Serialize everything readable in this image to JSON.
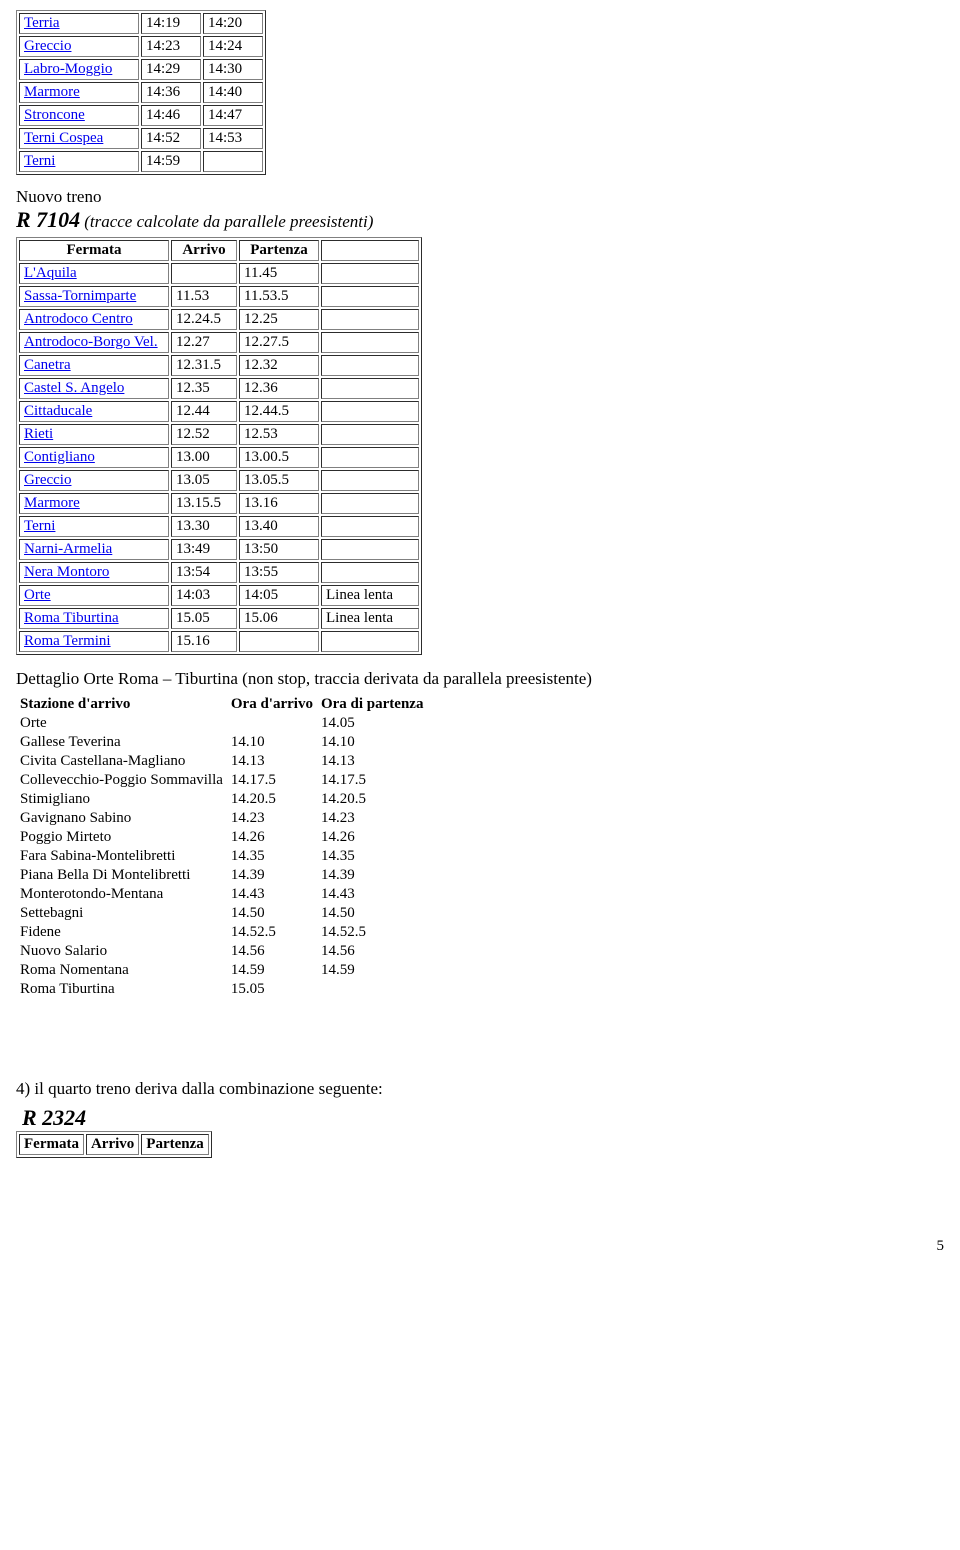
{
  "table1": {
    "col_widths": [
      "110px",
      "50px",
      "50px"
    ],
    "rows": [
      {
        "station": "Terria",
        "arr": "14:19",
        "dep": "14:20",
        "link": true
      },
      {
        "station": "Greccio",
        "arr": "14:23",
        "dep": "14:24",
        "link": true
      },
      {
        "station": "Labro-Moggio",
        "arr": "14:29",
        "dep": "14:30",
        "link": true
      },
      {
        "station": "Marmore",
        "arr": "14:36",
        "dep": "14:40",
        "link": true
      },
      {
        "station": "Stroncone",
        "arr": "14:46",
        "dep": "14:47",
        "link": true
      },
      {
        "station": "Terni Cospea",
        "arr": "14:52",
        "dep": "14:53",
        "link": true
      },
      {
        "station": "Terni",
        "arr": "14:59",
        "dep": "",
        "link": true
      }
    ]
  },
  "train2": {
    "prefix": "Nuovo treno",
    "id": "R 7104",
    "note": "(tracce calcolate da parallele preesistenti)"
  },
  "table2": {
    "headers": [
      "Fermata",
      "Arrivo",
      "Partenza",
      ""
    ],
    "col_widths": [
      "140px",
      "56px",
      "70px",
      "88px"
    ],
    "rows": [
      {
        "station": "L'Aquila",
        "arr": "",
        "dep": "11.45",
        "extra": "",
        "link": true
      },
      {
        "station": "Sassa-Tornimparte",
        "arr": "11.53",
        "dep": "11.53.5",
        "extra": "",
        "link": true
      },
      {
        "station": "Antrodoco Centro",
        "arr": "12.24.5",
        "dep": "12.25",
        "extra": "",
        "link": true
      },
      {
        "station": "Antrodoco-Borgo Vel.",
        "arr": "12.27",
        "dep": "12.27.5",
        "extra": "",
        "link": true
      },
      {
        "station": "Canetra",
        "arr": "12.31.5",
        "dep": "12.32",
        "extra": "",
        "link": true
      },
      {
        "station": "Castel S. Angelo",
        "arr": "12.35",
        "dep": "12.36",
        "extra": "",
        "link": true
      },
      {
        "station": "Cittaducale",
        "arr": "12.44",
        "dep": "12.44.5",
        "extra": "",
        "link": true
      },
      {
        "station": "Rieti",
        "arr": "12.52",
        "dep": "12.53",
        "extra": "",
        "link": true
      },
      {
        "station": "Contigliano",
        "arr": "13.00",
        "dep": "13.00.5",
        "extra": "",
        "link": true
      },
      {
        "station": "Greccio",
        "arr": "13.05",
        "dep": "13.05.5",
        "extra": "",
        "link": true
      },
      {
        "station": "Marmore",
        "arr": "13.15.5",
        "dep": "13.16",
        "extra": "",
        "link": true
      },
      {
        "station": "Terni",
        "arr": "13.30",
        "dep": "13.40",
        "extra": "",
        "link": true
      },
      {
        "station": "Narni-Armelia",
        "arr": "13:49",
        "dep": "13:50",
        "extra": "",
        "link": true
      },
      {
        "station": "Nera Montoro",
        "arr": "13:54",
        "dep": "13:55",
        "extra": "",
        "link": true
      },
      {
        "station": "Orte",
        "arr": "14:03",
        "dep": "14:05",
        "extra": "Linea lenta",
        "link": true
      },
      {
        "station": "Roma Tiburtina",
        "arr": "15.05",
        "dep": "15.06",
        "extra": "Linea lenta",
        "link": true
      },
      {
        "station": "Roma Termini",
        "arr": "15.16",
        "dep": "",
        "extra": "",
        "link": true
      }
    ]
  },
  "detail_text": "Dettaglio Orte Roma – Tiburtina (non stop, traccia derivata da parallela preesistente)",
  "table3": {
    "headers": [
      "Stazione d'arrivo",
      "Ora d'arrivo",
      "Ora di partenza"
    ],
    "rows": [
      {
        "station": "Orte",
        "arr": "",
        "dep": "14.05"
      },
      {
        "station": "Gallese Teverina",
        "arr": "14.10",
        "dep": "14.10"
      },
      {
        "station": "Civita Castellana-Magliano",
        "arr": "14.13",
        "dep": "14.13"
      },
      {
        "station": "Collevecchio-Poggio Sommavilla",
        "arr": "14.17.5",
        "dep": "14.17.5"
      },
      {
        "station": "Stimigliano",
        "arr": "14.20.5",
        "dep": "14.20.5"
      },
      {
        "station": "Gavignano Sabino",
        "arr": "14.23",
        "dep": "14.23"
      },
      {
        "station": "Poggio Mirteto",
        "arr": "14.26",
        "dep": "14.26"
      },
      {
        "station": "Fara Sabina-Montelibretti",
        "arr": "14.35",
        "dep": "14.35"
      },
      {
        "station": "Piana Bella Di Montelibretti",
        "arr": "14.39",
        "dep": "14.39"
      },
      {
        "station": "Monterotondo-Mentana",
        "arr": "14.43",
        "dep": "14.43"
      },
      {
        "station": "Settebagni",
        "arr": "14.50",
        "dep": "14.50"
      },
      {
        "station": "Fidene",
        "arr": "14.52.5",
        "dep": "14.52.5"
      },
      {
        "station": "Nuovo Salario",
        "arr": "14.56",
        "dep": "14.56"
      },
      {
        "station": "Roma Nomentana",
        "arr": "14.59",
        "dep": "14.59"
      },
      {
        "station": "Roma Tiburtina",
        "arr": "15.05",
        "dep": ""
      }
    ]
  },
  "section4": "4) il quarto treno deriva dalla combinazione seguente:",
  "train4_id": "R 2324",
  "table4_headers": [
    "Fermata",
    "Arrivo",
    "Partenza"
  ],
  "page_number": "5"
}
